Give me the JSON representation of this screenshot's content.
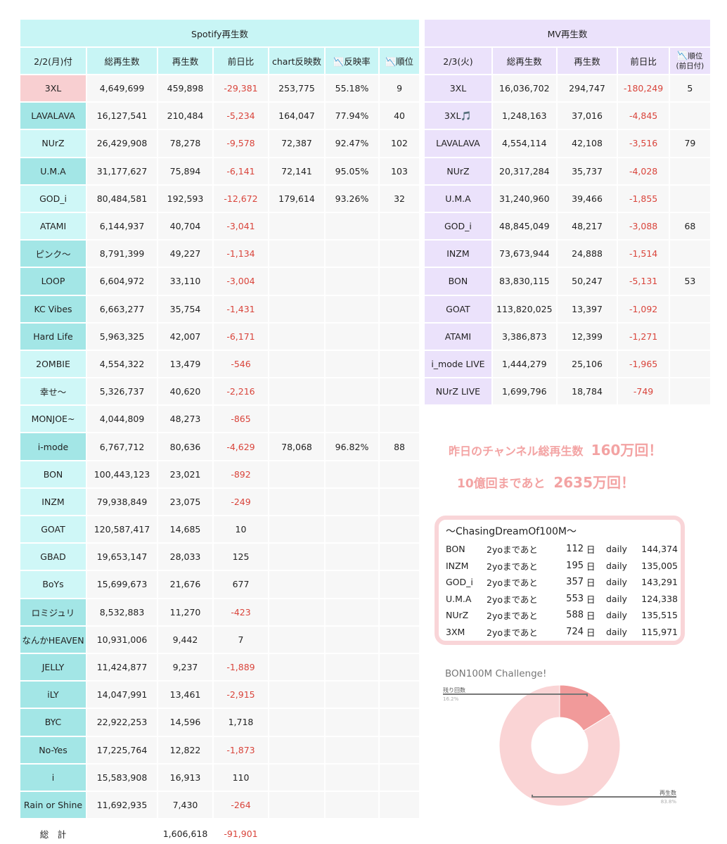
{
  "spotify": {
    "title": "Spotify再生数",
    "columns": [
      "2/2(月)付",
      "総再生数",
      "再生数",
      "前日比",
      "chart反映数",
      "反映率",
      "順位"
    ],
    "chart_icon": "chart-decline-emoji",
    "rows": [
      {
        "name": "3XL",
        "total": "4,649,699",
        "plays": "459,898",
        "diff": "-29,381",
        "chart": "253,775",
        "rate": "55.18%",
        "rank": "9",
        "style": "pink"
      },
      {
        "name": "LAVALAVA",
        "total": "16,127,541",
        "plays": "210,484",
        "diff": "-5,234",
        "chart": "164,047",
        "rate": "77.94%",
        "rank": "40",
        "style": "teal"
      },
      {
        "name": "NUrZ",
        "total": "26,429,908",
        "plays": "78,278",
        "diff": "-9,578",
        "chart": "72,387",
        "rate": "92.47%",
        "rank": "102",
        "style": "light"
      },
      {
        "name": "U.M.A",
        "total": "31,177,627",
        "plays": "75,894",
        "diff": "-6,141",
        "chart": "72,141",
        "rate": "95.05%",
        "rank": "103",
        "style": "teal"
      },
      {
        "name": "GOD_i",
        "total": "80,484,581",
        "plays": "192,593",
        "diff": "-12,672",
        "chart": "179,614",
        "rate": "93.26%",
        "rank": "32",
        "style": "light"
      },
      {
        "name": "ATAMI",
        "total": "6,144,937",
        "plays": "40,704",
        "diff": "-3,041",
        "chart": "",
        "rate": "",
        "rank": "",
        "style": "light"
      },
      {
        "name": "ピンク〜",
        "total": "8,791,399",
        "plays": "49,227",
        "diff": "-1,134",
        "chart": "",
        "rate": "",
        "rank": "",
        "style": "teal"
      },
      {
        "name": "LOOP",
        "total": "6,604,972",
        "plays": "33,110",
        "diff": "-3,004",
        "chart": "",
        "rate": "",
        "rank": "",
        "style": "teal"
      },
      {
        "name": "KC Vibes",
        "total": "6,663,277",
        "plays": "35,754",
        "diff": "-1,431",
        "chart": "",
        "rate": "",
        "rank": "",
        "style": "teal"
      },
      {
        "name": "Hard Life",
        "total": "5,963,325",
        "plays": "42,007",
        "diff": "-6,171",
        "chart": "",
        "rate": "",
        "rank": "",
        "style": "teal"
      },
      {
        "name": "2OMBIE",
        "total": "4,554,322",
        "plays": "13,479",
        "diff": "-546",
        "chart": "",
        "rate": "",
        "rank": "",
        "style": "light"
      },
      {
        "name": "幸せ〜",
        "total": "5,326,737",
        "plays": "40,620",
        "diff": "-2,216",
        "chart": "",
        "rate": "",
        "rank": "",
        "style": "light"
      },
      {
        "name": "MONJOE~",
        "total": "4,044,809",
        "plays": "48,273",
        "diff": "-865",
        "chart": "",
        "rate": "",
        "rank": "",
        "style": "light"
      },
      {
        "name": "i-mode",
        "total": "6,767,712",
        "plays": "80,636",
        "diff": "-4,629",
        "chart": "78,068",
        "rate": "96.82%",
        "rank": "88",
        "style": "teal"
      },
      {
        "name": "BON",
        "total": "100,443,123",
        "plays": "23,021",
        "diff": "-892",
        "chart": "",
        "rate": "",
        "rank": "",
        "style": "light"
      },
      {
        "name": "INZM",
        "total": "79,938,849",
        "plays": "23,075",
        "diff": "-249",
        "chart": "",
        "rate": "",
        "rank": "",
        "style": "light"
      },
      {
        "name": "GOAT",
        "total": "120,587,417",
        "plays": "14,685",
        "diff": "10",
        "chart": "",
        "rate": "",
        "rank": "",
        "style": "light"
      },
      {
        "name": "GBAD",
        "total": "19,653,147",
        "plays": "28,033",
        "diff": "125",
        "chart": "",
        "rate": "",
        "rank": "",
        "style": "light"
      },
      {
        "name": "BoYs",
        "total": "15,699,673",
        "plays": "21,676",
        "diff": "677",
        "chart": "",
        "rate": "",
        "rank": "",
        "style": "light"
      },
      {
        "name": "ロミジュリ",
        "total": "8,532,883",
        "plays": "11,270",
        "diff": "-423",
        "chart": "",
        "rate": "",
        "rank": "",
        "style": "teal"
      },
      {
        "name": "なんかHEAVEN",
        "total": "10,931,006",
        "plays": "9,442",
        "diff": "7",
        "chart": "",
        "rate": "",
        "rank": "",
        "style": "teal"
      },
      {
        "name": "JELLY",
        "total": "11,424,877",
        "plays": "9,237",
        "diff": "-1,889",
        "chart": "",
        "rate": "",
        "rank": "",
        "style": "teal"
      },
      {
        "name": "iLY",
        "total": "14,047,991",
        "plays": "13,461",
        "diff": "-2,915",
        "chart": "",
        "rate": "",
        "rank": "",
        "style": "teal"
      },
      {
        "name": "BYC",
        "total": "22,922,253",
        "plays": "14,596",
        "diff": "1,718",
        "chart": "",
        "rate": "",
        "rank": "",
        "style": "teal"
      },
      {
        "name": "No-Yes",
        "total": "17,225,764",
        "plays": "12,822",
        "diff": "-1,873",
        "chart": "",
        "rate": "",
        "rank": "",
        "style": "teal"
      },
      {
        "name": "i",
        "total": "15,583,908",
        "plays": "16,913",
        "diff": "110",
        "chart": "",
        "rate": "",
        "rank": "",
        "style": "teal"
      },
      {
        "name": "Rain or Shine",
        "total": "11,692,935",
        "plays": "7,430",
        "diff": "-264",
        "chart": "",
        "rate": "",
        "rank": "",
        "style": "teal"
      }
    ],
    "total": {
      "label": "総　計",
      "plays": "1,606,618",
      "diff": "-91,901"
    }
  },
  "mv": {
    "title": "MV再生数",
    "columns": [
      "2/3(火)",
      "総再生数",
      "再生数",
      "前日比",
      "順位",
      "(前日付)"
    ],
    "rows": [
      {
        "name": "3XL",
        "total": "16,036,702",
        "plays": "294,747",
        "diff": "-180,249",
        "rank": "5"
      },
      {
        "name": "3XL🎵",
        "total": "1,248,163",
        "plays": "37,016",
        "diff": "-4,845",
        "rank": ""
      },
      {
        "name": "LAVALAVA",
        "total": "4,554,114",
        "plays": "42,108",
        "diff": "-3,516",
        "rank": "79"
      },
      {
        "name": "NUrZ",
        "total": "20,317,284",
        "plays": "35,737",
        "diff": "-4,028",
        "rank": ""
      },
      {
        "name": "U.M.A",
        "total": "31,240,960",
        "plays": "39,466",
        "diff": "-1,855",
        "rank": ""
      },
      {
        "name": "GOD_i",
        "total": "48,845,049",
        "plays": "48,217",
        "diff": "-3,088",
        "rank": "68"
      },
      {
        "name": "INZM",
        "total": "73,673,944",
        "plays": "24,888",
        "diff": "-1,514",
        "rank": ""
      },
      {
        "name": "BON",
        "total": "83,830,115",
        "plays": "50,247",
        "diff": "-5,131",
        "rank": "53"
      },
      {
        "name": "GOAT",
        "total": "113,820,025",
        "plays": "13,397",
        "diff": "-1,092",
        "rank": ""
      },
      {
        "name": "ATAMI",
        "total": "3,386,873",
        "plays": "12,399",
        "diff": "-1,271",
        "rank": ""
      },
      {
        "name": "i_mode LIVE",
        "total": "1,444,279",
        "plays": "25,106",
        "diff": "-1,965",
        "rank": ""
      },
      {
        "name": "NUrZ LIVE",
        "total": "1,699,796",
        "plays": "18,784",
        "diff": "-749",
        "rank": ""
      }
    ]
  },
  "milestone": {
    "line1_text": "昨日のチャンネル総再生数",
    "line1_value": "160万回！",
    "line2_prefix": "10億回まであと",
    "line2_value": "2635万回！"
  },
  "chasing": {
    "title": "〜ChasingDreamOf100M〜",
    "rows": [
      {
        "name": "BON",
        "label": "2yoまであと",
        "days": "112",
        "unit": "日",
        "daily_label": "daily",
        "daily": "144,374"
      },
      {
        "name": "INZM",
        "label": "2yoまであと",
        "days": "195",
        "unit": "日",
        "daily_label": "daily",
        "daily": "135,005"
      },
      {
        "name": "GOD_i",
        "label": "2yoまであと",
        "days": "357",
        "unit": "日",
        "daily_label": "daily",
        "daily": "143,291"
      },
      {
        "name": "U.M.A",
        "label": "2yoまであと",
        "days": "553",
        "unit": "日",
        "daily_label": "daily",
        "daily": "124,338"
      },
      {
        "name": "NUrZ",
        "label": "2yoまであと",
        "days": "588",
        "unit": "日",
        "daily_label": "daily",
        "daily": "135,515"
      },
      {
        "name": "3XM",
        "label": "2yoまであと",
        "days": "724",
        "unit": "日",
        "daily_label": "daily",
        "daily": "115,971"
      }
    ]
  },
  "chart_data": {
    "type": "pie",
    "title": "BON100M Challenge!",
    "slices": [
      {
        "label": "残り回数",
        "value": 16.2,
        "display": "16.2%",
        "color": "#f19a9a"
      },
      {
        "label": "再生数",
        "value": 83.8,
        "display": "83.8%",
        "color": "#fad4d5"
      }
    ]
  },
  "colors": {
    "spotify_header": "#c8f5f5",
    "spotify_name_teal": "#a3e6e6",
    "spotify_name_light": "#cff7f7",
    "highlight_pink": "#f8cfd1",
    "mv_header": "#ebe2fb",
    "negative_text": "#d9443b",
    "milestone_text": "#f3a3a3"
  }
}
